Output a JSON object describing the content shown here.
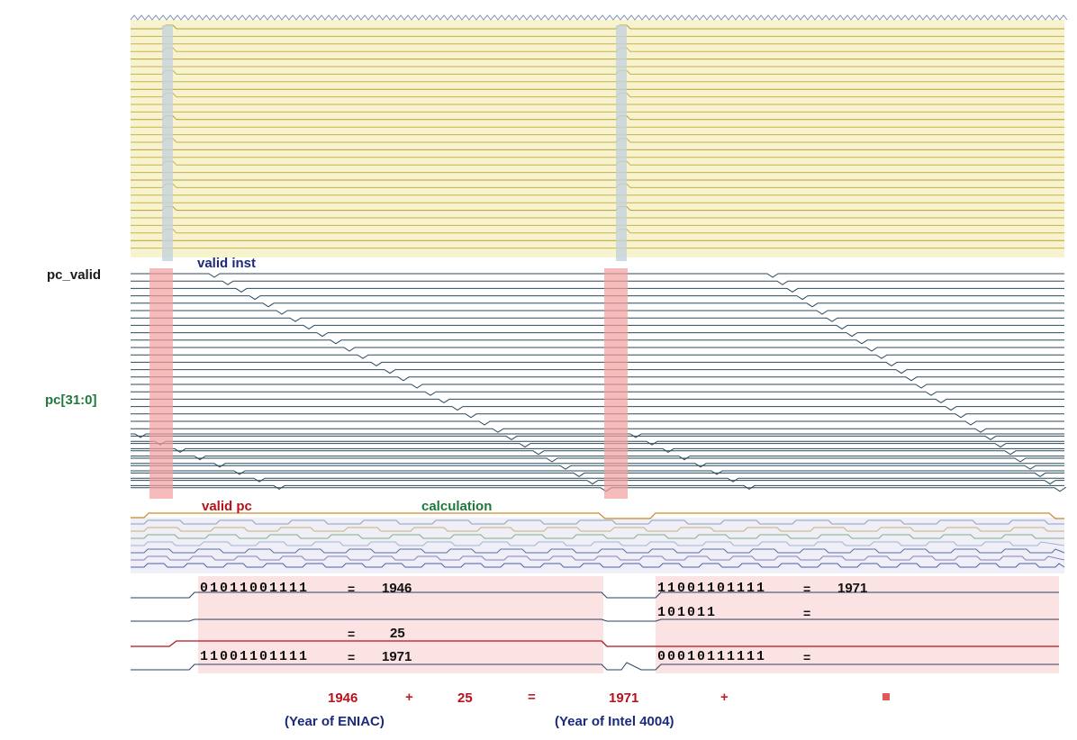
{
  "signals": {
    "pc_valid": "pc_valid",
    "pc_bus": "pc[31:0]"
  },
  "annotations": {
    "valid_inst": "valid inst",
    "valid_pc": "valid pc",
    "calculation": "calculation"
  },
  "rows": {
    "row1": {
      "bits": "01011001111",
      "eq": "=",
      "value": "1946"
    },
    "row2": {
      "eq": "=",
      "value": "25"
    },
    "row3": {
      "bits": "11001101111",
      "eq": "=",
      "value": "1971"
    },
    "right1": {
      "bits": "11001101111",
      "eq": "=",
      "value": "1971"
    },
    "right2": {
      "bits": "101011",
      "eq": "="
    },
    "right3": {
      "bits": "00010111111",
      "eq": "="
    }
  },
  "equation": {
    "a": "1946",
    "plus": "+",
    "b": "25",
    "equals": "=",
    "c": "1971",
    "plus2": "+"
  },
  "captions": {
    "eniac": "(Year of ENIAC)",
    "intel": "(Year of Intel 4004)"
  },
  "colors": {
    "yellow_panel": "#f7f3cf",
    "yellow_trace": "#c9b24a",
    "blue_trace": "#2b4a5c",
    "red_highlight": "#f2a0a0",
    "pink_panel": "#fbe3e3"
  }
}
